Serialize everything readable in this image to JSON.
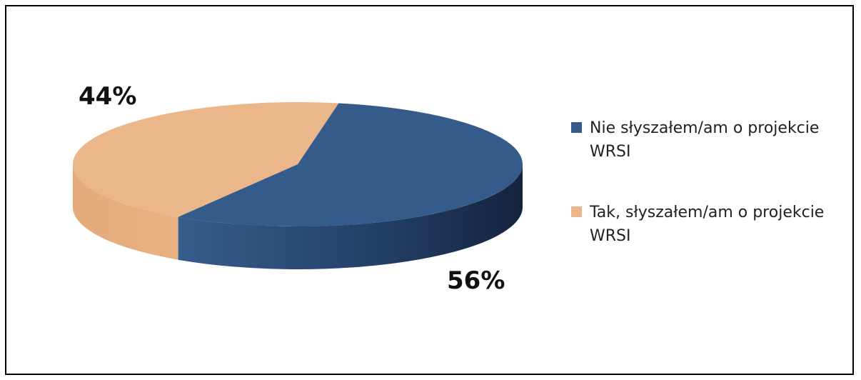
{
  "chart_data": {
    "type": "pie",
    "style": "3d",
    "title": "",
    "series": [
      {
        "label_line1": "Nie słyszałem/am o projekcie",
        "label_line2": "WRSI",
        "value": 56,
        "data_label": "56%",
        "color": "#355b8b"
      },
      {
        "label_line1": "Tak, słyszałem/am o projekcie",
        "label_line2": "WRSI",
        "value": 44,
        "data_label": "44%",
        "color": "#ebb689"
      }
    ],
    "legend_placement": "right"
  }
}
